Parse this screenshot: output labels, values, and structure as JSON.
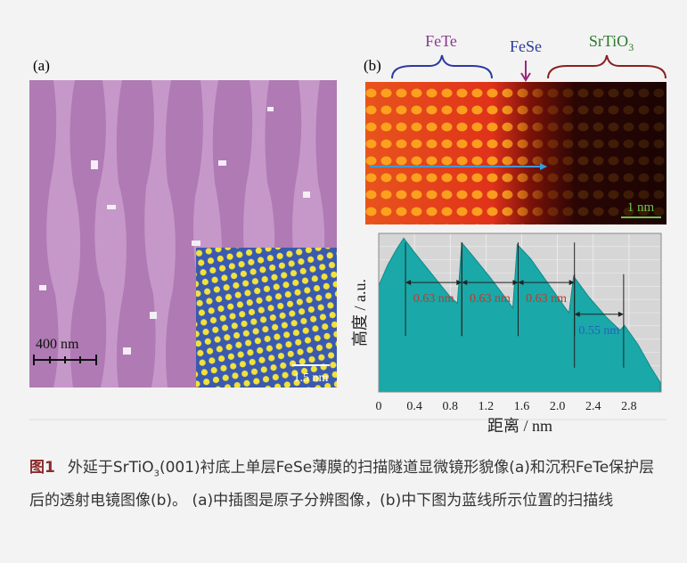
{
  "panels": {
    "a": {
      "label": "(a)",
      "scale_bar": "400 nm",
      "inset_scale_bar": "1.5 nm"
    },
    "b": {
      "label": "(b)",
      "regions": [
        {
          "name": "FeTe",
          "color": "#8a3a8a"
        },
        {
          "name": "FeSe",
          "color": "#2a3a9a"
        },
        {
          "name": "SrTiO",
          "sub": "3",
          "color": "#2a7a2a"
        }
      ],
      "scale_bar": "1 nm"
    }
  },
  "chart_data": {
    "type": "area",
    "color": "#1aa8a8",
    "xlabel": "距离 / nm",
    "ylabel": "高度 / a.u.",
    "x": [
      0,
      0.1,
      0.2,
      0.28,
      0.4,
      0.6,
      0.8,
      0.88,
      0.93,
      1.05,
      1.25,
      1.45,
      1.5,
      1.55,
      1.7,
      1.9,
      2.1,
      2.13,
      2.18,
      2.35,
      2.55,
      2.7,
      2.75,
      2.9,
      3.05,
      3.15
    ],
    "values": [
      0.67,
      0.8,
      0.9,
      0.97,
      0.88,
      0.74,
      0.6,
      0.56,
      0.94,
      0.86,
      0.72,
      0.57,
      0.53,
      0.93,
      0.84,
      0.68,
      0.52,
      0.5,
      0.73,
      0.6,
      0.47,
      0.39,
      0.42,
      0.3,
      0.15,
      0.06
    ],
    "xlim": [
      0,
      3.16
    ],
    "ylim": [
      0,
      1
    ],
    "xticks": [
      0,
      0.4,
      0.8,
      1.2,
      1.6,
      {
        "value": 2,
        "label": "2.0"
      },
      2.4,
      2.8
    ],
    "grid": true,
    "annotations": [
      {
        "text": "0.63 nm",
        "from": 0.3,
        "to": 0.93,
        "y": 0.69,
        "color": "#c0392b"
      },
      {
        "text": "0.63 nm",
        "from": 0.93,
        "to": 1.56,
        "y": 0.69,
        "color": "#c0392b"
      },
      {
        "text": "0.63 nm",
        "from": 1.56,
        "to": 2.19,
        "y": 0.69,
        "color": "#c0392b"
      },
      {
        "text": "0.55 nm",
        "from": 2.19,
        "to": 2.74,
        "y": 0.49,
        "color": "#2a5fc0"
      }
    ]
  },
  "caption": {
    "label": "图1",
    "parts": [
      "外延于SrTiO",
      "3",
      "(001)衬底上单层FeSe薄膜的扫描隧道显微镜形貌像(a)和沉积FeTe保护层后的透射电镜图像(b)。 (a)中插图是原子分辨图像，(b)中下图为蓝线所示位置的扫描线"
    ]
  }
}
